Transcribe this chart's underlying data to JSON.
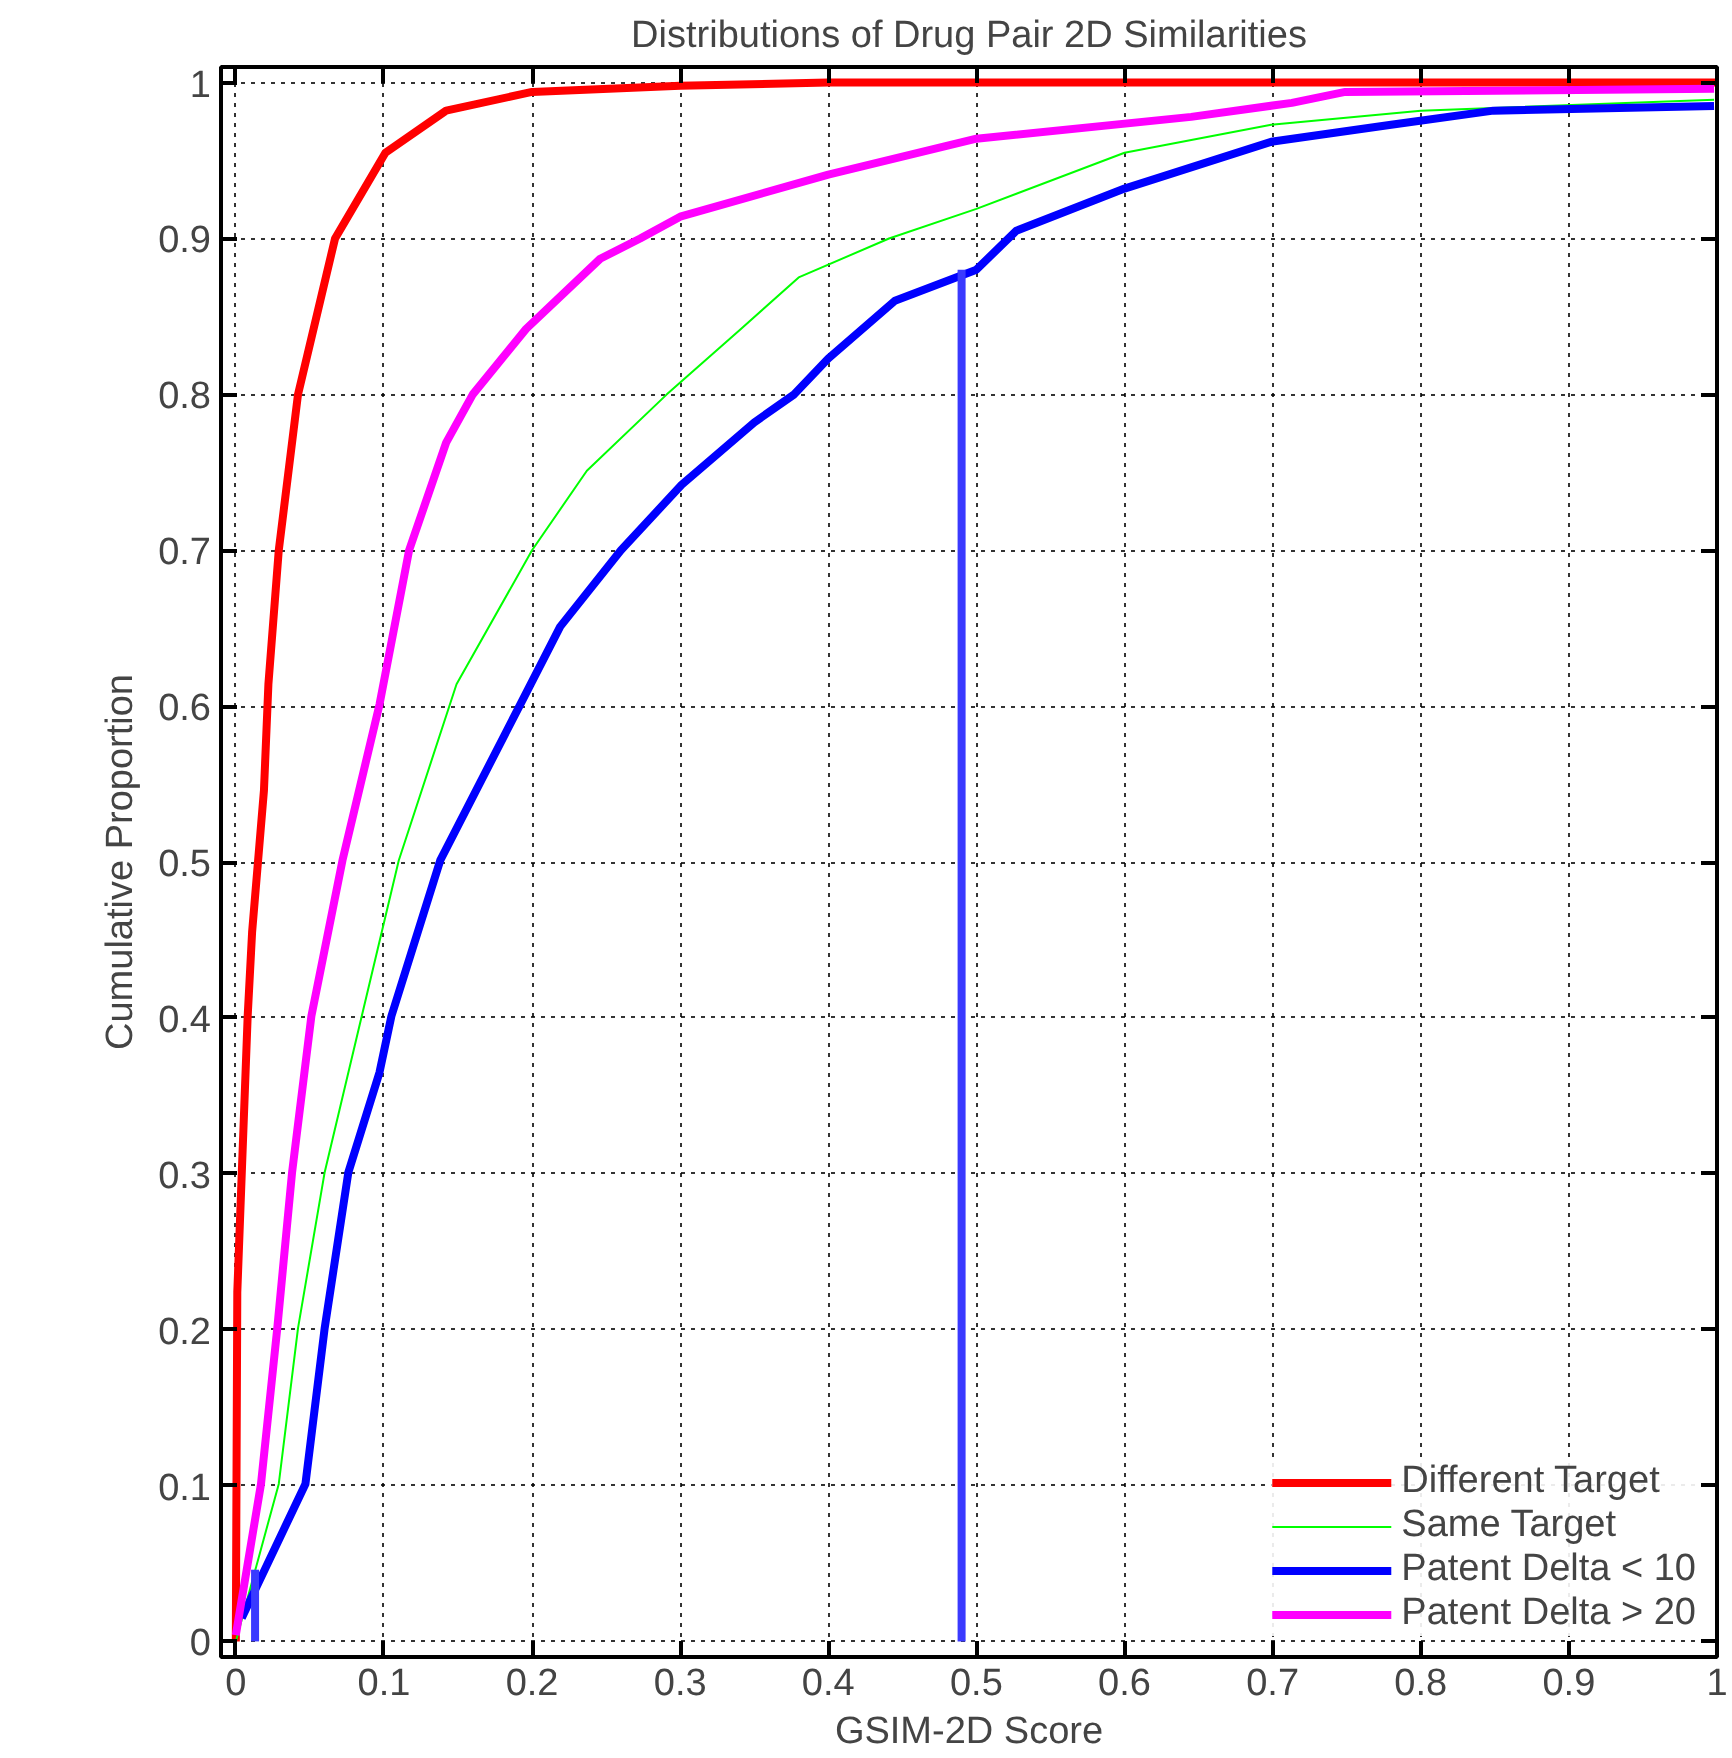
{
  "chart_data": {
    "type": "line",
    "title": "Distributions of Drug Pair 2D Similarities",
    "xlabel": "GSIM-2D Score",
    "ylabel": "Cumulative Proportion",
    "xlim": [
      -0.01,
      1.0
    ],
    "ylim": [
      -0.01,
      1.01
    ],
    "xticks": [
      0,
      0.1,
      0.2,
      0.3,
      0.4,
      0.5,
      0.6,
      0.7,
      0.8,
      0.9,
      1
    ],
    "yticks": [
      0,
      0.1,
      0.2,
      0.3,
      0.4,
      0.5,
      0.6,
      0.7,
      0.8,
      0.9,
      1
    ],
    "grid": true,
    "legend": "bottom right",
    "line_style": "solid",
    "marker": "none",
    "series": [
      {
        "name": "Different Target",
        "color": "#ff0000",
        "x": [
          0,
          0.001,
          0.008,
          0.011,
          0.019,
          0.022,
          0.029,
          0.042,
          0.067,
          0.101,
          0.142,
          0.2,
          0.3,
          0.4,
          0.6,
          1.0
        ],
        "values": [
          0,
          0.224,
          0.401,
          0.455,
          0.546,
          0.614,
          0.7,
          0.8,
          0.9,
          0.955,
          0.982,
          0.994,
          0.998,
          1,
          1,
          1
        ]
      },
      {
        "name": "Same Target",
        "color": "#00ff00",
        "x": [
          0,
          0.029,
          0.042,
          0.06,
          0.085,
          0.11,
          0.149,
          0.2,
          0.237,
          0.291,
          0.341,
          0.38,
          0.441,
          0.5,
          0.6,
          0.699,
          0.8,
          0.998
        ],
        "values": [
          0,
          0.101,
          0.201,
          0.301,
          0.401,
          0.501,
          0.614,
          0.7,
          0.751,
          0.8,
          0.842,
          0.875,
          0.9,
          0.919,
          0.955,
          0.973,
          0.982,
          0.989
        ]
      },
      {
        "name": "Patent Delta < 10",
        "color": "#0000ff",
        "x": [
          0.004,
          0.047,
          0.06,
          0.076,
          0.097,
          0.105,
          0.138,
          0.192,
          0.219,
          0.26,
          0.301,
          0.35,
          0.377,
          0.4,
          0.445,
          0.5,
          0.527,
          0.6,
          0.699,
          0.78,
          0.849,
          0.998
        ],
        "values": [
          0.015,
          0.101,
          0.201,
          0.301,
          0.365,
          0.401,
          0.501,
          0.601,
          0.651,
          0.7,
          0.742,
          0.782,
          0.8,
          0.823,
          0.86,
          0.88,
          0.905,
          0.932,
          0.962,
          0.973,
          0.982,
          0.985
        ]
      },
      {
        "name": "Patent Delta > 20",
        "color": "#ff00ff",
        "x": [
          0,
          0.017,
          0.028,
          0.038,
          0.051,
          0.072,
          0.097,
          0.117,
          0.142,
          0.16,
          0.196,
          0.246,
          0.273,
          0.3,
          0.4,
          0.5,
          0.645,
          0.713,
          0.749,
          0.998
        ],
        "values": [
          0.004,
          0.101,
          0.201,
          0.301,
          0.401,
          0.501,
          0.601,
          0.7,
          0.769,
          0.8,
          0.842,
          0.887,
          0.9,
          0.914,
          0.941,
          0.964,
          0.978,
          0.987,
          0.994,
          0.996
        ]
      },
      {
        "color": "#3a3aff",
        "x": [
          0.013,
          0.013
        ],
        "values": [
          0,
          0.046
        ]
      },
      {
        "color": "#3a3aff",
        "x": [
          0.49,
          0.49
        ],
        "values": [
          0,
          0.88
        ]
      }
    ]
  }
}
